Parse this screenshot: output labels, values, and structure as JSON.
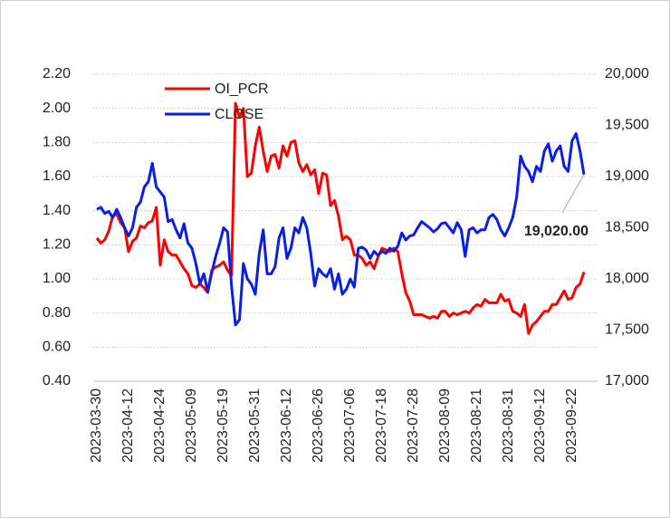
{
  "chart_data": {
    "type": "line",
    "categories": [
      "2023-03-30",
      null,
      null,
      null,
      null,
      null,
      null,
      null,
      "2023-04-12",
      null,
      null,
      null,
      null,
      null,
      null,
      null,
      "2023-04-24",
      null,
      null,
      null,
      null,
      null,
      null,
      null,
      "2023-05-09",
      null,
      null,
      null,
      null,
      null,
      null,
      null,
      "2023-05-19",
      null,
      null,
      null,
      null,
      null,
      null,
      null,
      "2023-05-31",
      null,
      null,
      null,
      null,
      null,
      null,
      null,
      "2023-06-12",
      null,
      null,
      null,
      null,
      null,
      null,
      null,
      "2023-06-26",
      null,
      null,
      null,
      null,
      null,
      null,
      null,
      "2023-07-06",
      null,
      null,
      null,
      null,
      null,
      null,
      null,
      "2023-07-18",
      null,
      null,
      null,
      null,
      null,
      null,
      null,
      "2023-07-28",
      null,
      null,
      null,
      null,
      null,
      null,
      null,
      "2023-08-09",
      null,
      null,
      null,
      null,
      null,
      null,
      null,
      "2023-08-21",
      null,
      null,
      null,
      null,
      null,
      null,
      null,
      "2023-08-31",
      null,
      null,
      null,
      null,
      null,
      null,
      null,
      "2023-09-12",
      null,
      null,
      null,
      null,
      null,
      null,
      null,
      "2023-09-22",
      null,
      null,
      null
    ],
    "series": [
      {
        "name": "OI_PCR",
        "color": "#ff0000",
        "axis": "y",
        "values": [
          1.24,
          1.21,
          1.23,
          1.28,
          1.37,
          1.38,
          1.33,
          1.3,
          1.16,
          1.22,
          1.24,
          1.31,
          1.3,
          1.33,
          1.34,
          1.42,
          1.08,
          1.23,
          1.16,
          1.14,
          1.14,
          1.1,
          1.06,
          1.03,
          0.96,
          0.95,
          0.97,
          0.95,
          0.92,
          1.05,
          1.07,
          1.08,
          1.1,
          1.05,
          1.02,
          2.03,
          1.95,
          2.0,
          1.6,
          1.62,
          1.78,
          1.89,
          1.75,
          1.63,
          1.72,
          1.73,
          1.65,
          1.78,
          1.72,
          1.8,
          1.81,
          1.68,
          1.63,
          1.67,
          1.61,
          1.64,
          1.5,
          1.62,
          1.61,
          1.43,
          1.46,
          1.37,
          1.23,
          1.25,
          1.23,
          1.14,
          1.14,
          1.12,
          1.08,
          1.1,
          1.06,
          1.13,
          1.18,
          1.17,
          1.16,
          1.18,
          1.16,
          1.03,
          0.92,
          0.87,
          0.79,
          0.79,
          0.79,
          0.78,
          0.77,
          0.78,
          0.77,
          0.81,
          0.81,
          0.78,
          0.8,
          0.79,
          0.8,
          0.81,
          0.8,
          0.83,
          0.85,
          0.84,
          0.88,
          0.86,
          0.86,
          0.86,
          0.91,
          0.87,
          0.88,
          0.81,
          0.8,
          0.78,
          0.85,
          0.68,
          0.73,
          0.75,
          0.78,
          0.81,
          0.81,
          0.85,
          0.85,
          0.89,
          0.93,
          0.88,
          0.89,
          0.95,
          0.97,
          1.04
        ]
      },
      {
        "name": "CLOSE",
        "color": "#0a1ee6",
        "axis": "y2",
        "values": [
          18680,
          18700,
          18640,
          18660,
          18600,
          18680,
          18600,
          18500,
          18420,
          18500,
          18700,
          18750,
          18900,
          18950,
          19130,
          18900,
          18850,
          18800,
          18560,
          18580,
          18480,
          18400,
          18540,
          18350,
          18300,
          18150,
          17950,
          18050,
          17880,
          18060,
          18220,
          18350,
          18500,
          18460,
          17930,
          17550,
          17600,
          18150,
          18000,
          17950,
          17850,
          18250,
          18480,
          18050,
          18050,
          18120,
          18400,
          18500,
          18200,
          18300,
          18500,
          18450,
          18600,
          18500,
          18250,
          17930,
          18100,
          18050,
          18020,
          18100,
          17900,
          18050,
          17850,
          17900,
          18000,
          17920,
          18300,
          18310,
          18280,
          18200,
          18270,
          18230,
          18270,
          18250,
          18300,
          18270,
          18320,
          18450,
          18380,
          18420,
          18430,
          18500,
          18560,
          18530,
          18500,
          18460,
          18490,
          18540,
          18550,
          18500,
          18450,
          18550,
          18480,
          18220,
          18480,
          18500,
          18450,
          18480,
          18480,
          18600,
          18630,
          18580,
          18480,
          18420,
          18500,
          18600,
          18800,
          19200,
          19100,
          19050,
          18950,
          19100,
          19050,
          19250,
          19320,
          19150,
          19250,
          19300,
          19100,
          19050,
          19350,
          19420,
          19250,
          19020
        ],
        "value_labels": [
          null,
          null,
          null,
          null,
          null,
          null,
          null,
          null,
          null,
          null,
          null,
          null,
          null,
          null,
          null,
          null,
          null,
          null,
          null,
          null,
          null,
          null,
          null,
          null,
          null,
          null,
          null,
          null,
          null,
          null,
          null,
          null,
          null,
          null,
          null,
          null,
          null,
          null,
          null,
          null,
          null,
          null,
          null,
          null,
          null,
          null,
          null,
          null,
          null,
          null,
          null,
          null,
          null,
          null,
          null,
          null,
          null,
          null,
          null,
          null,
          null,
          null,
          null,
          null,
          null,
          null,
          null,
          null,
          null,
          null,
          null,
          null,
          null,
          null,
          null,
          null,
          null,
          null,
          null,
          null,
          null,
          null,
          null,
          null,
          null,
          null,
          null,
          null,
          null,
          null,
          null,
          null,
          null,
          null,
          null,
          null,
          null,
          null,
          null,
          null,
          null,
          null,
          null,
          null,
          null,
          null,
          null,
          null,
          null,
          null,
          null,
          null,
          null,
          null,
          null,
          null,
          null,
          null,
          null,
          null,
          null,
          null,
          null,
          "19,020.00"
        ]
      }
    ],
    "ylim": [
      0.4,
      2.2
    ],
    "yticks": [
      {
        "value": 0.4,
        "label": "0.40"
      },
      {
        "value": 0.6,
        "label": "0.60"
      },
      {
        "value": 0.8,
        "label": "0.80"
      },
      {
        "value": 1.0,
        "label": "1.00"
      },
      {
        "value": 1.2,
        "label": "1.20"
      },
      {
        "value": 1.4,
        "label": "1.40"
      },
      {
        "value": 1.6,
        "label": "1.60"
      },
      {
        "value": 1.8,
        "label": "1.80"
      },
      {
        "value": 2.0,
        "label": "2.00"
      },
      {
        "value": 2.2,
        "label": "2.20"
      }
    ],
    "y2lim": [
      17000,
      20000
    ],
    "y2ticks": [
      {
        "value": 17000,
        "label": "17,000"
      },
      {
        "value": 17500,
        "label": "17,500"
      },
      {
        "value": 18000,
        "label": "18,000"
      },
      {
        "value": 18500,
        "label": "18,500"
      },
      {
        "value": 19000,
        "label": "19,000"
      },
      {
        "value": 19500,
        "label": "19,500"
      },
      {
        "value": 20000,
        "label": "20,000"
      }
    ],
    "grid": true,
    "legend": "upper left"
  }
}
